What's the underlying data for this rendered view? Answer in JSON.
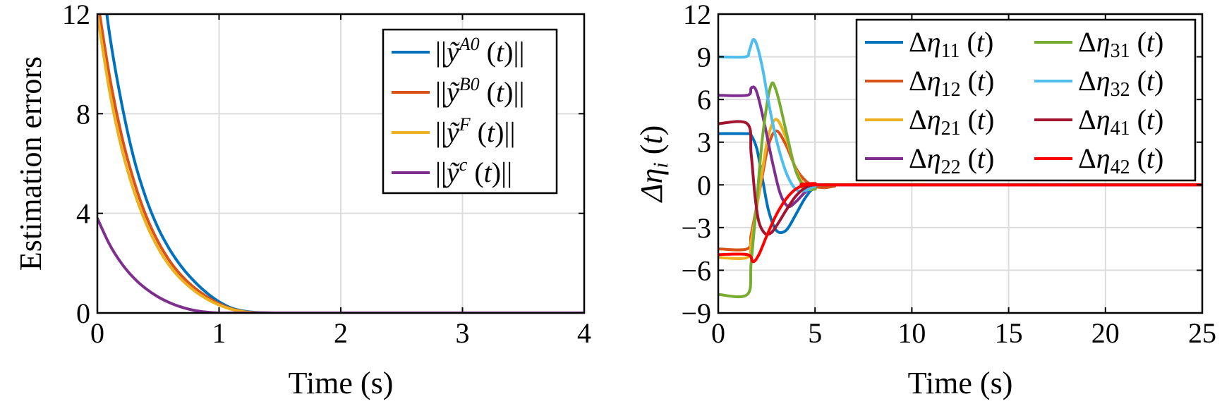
{
  "chart_data": [
    {
      "type": "line",
      "xlabel": "Time (s)",
      "ylabel": "Estimation errors",
      "xlim": [
        0,
        4
      ],
      "ylim": [
        0,
        12
      ],
      "xticks": [
        0,
        1,
        2,
        3,
        4
      ],
      "yticks": [
        0,
        4,
        8,
        12
      ],
      "grid": true,
      "legend": "top-right",
      "series": [
        {
          "name": "||ỹ^A0 (t)||",
          "legend_base": "ỹ",
          "legend_sup": "A0",
          "color": "#0072BD",
          "x": [
            0,
            0.1,
            0.2,
            0.3,
            0.4,
            0.5,
            0.6,
            0.7,
            0.8,
            0.9,
            1.0,
            1.1,
            1.2,
            1.3,
            1.5,
            2,
            3,
            4
          ],
          "y": [
            15.0,
            11.2,
            8.4,
            6.2,
            4.6,
            3.4,
            2.5,
            1.8,
            1.25,
            0.8,
            0.45,
            0.2,
            0.08,
            0.02,
            0,
            0,
            0,
            0
          ]
        },
        {
          "name": "||ỹ^B0 (t)||",
          "legend_base": "ỹ",
          "legend_sup": "B0",
          "color": "#D95319",
          "x": [
            0,
            0.1,
            0.2,
            0.3,
            0.4,
            0.5,
            0.6,
            0.7,
            0.8,
            0.9,
            1.0,
            1.1,
            1.2,
            1.3,
            1.5,
            2,
            3,
            4
          ],
          "y": [
            12.6,
            9.5,
            7.1,
            5.3,
            3.9,
            2.85,
            2.05,
            1.45,
            1.0,
            0.65,
            0.37,
            0.17,
            0.06,
            0.01,
            0,
            0,
            0,
            0
          ]
        },
        {
          "name": "||ỹ^F (t)||",
          "legend_base": "ỹ",
          "legend_sup": "F",
          "color": "#EDB120",
          "x": [
            0,
            0.1,
            0.2,
            0.3,
            0.4,
            0.5,
            0.6,
            0.7,
            0.8,
            0.9,
            1.0,
            1.1,
            1.2,
            1.3,
            1.5,
            2,
            3,
            4
          ],
          "y": [
            12.0,
            8.9,
            6.6,
            4.9,
            3.6,
            2.6,
            1.85,
            1.3,
            0.88,
            0.56,
            0.32,
            0.15,
            0.05,
            0.01,
            0,
            0,
            0,
            0
          ]
        },
        {
          "name": "||ỹ^c (t)||",
          "legend_base": "ỹ",
          "legend_sup": "c",
          "color": "#7E2F8E",
          "x": [
            0,
            0.1,
            0.2,
            0.3,
            0.4,
            0.5,
            0.6,
            0.7,
            0.8,
            0.9,
            1.0,
            1.2,
            1.5,
            2,
            3,
            4
          ],
          "y": [
            3.8,
            2.75,
            1.98,
            1.4,
            0.97,
            0.64,
            0.4,
            0.22,
            0.1,
            0.03,
            0,
            0,
            0,
            0,
            0,
            0
          ]
        }
      ]
    },
    {
      "type": "line",
      "xlabel": "Time (s)",
      "ylabel": "Δη_i (t)",
      "ylabel_base": "Δη",
      "ylabel_sub": "i",
      "ylabel_tail": " (t)",
      "xlim": [
        0,
        25
      ],
      "ylim": [
        -9,
        12
      ],
      "xticks": [
        0,
        5,
        10,
        15,
        20,
        25
      ],
      "yticks": [
        -9,
        -6,
        -3,
        0,
        3,
        6,
        9,
        12
      ],
      "grid": true,
      "legend": "top-right",
      "series": [
        {
          "name": "Δη11 (t)",
          "legend_sub": "11",
          "color": "#0072BD",
          "x": [
            0,
            1.5,
            1.7,
            2.0,
            2.3,
            2.6,
            3.0,
            3.5,
            4.0,
            4.5,
            5.0,
            6.0,
            7.0,
            25
          ],
          "y": [
            3.6,
            3.6,
            3.5,
            2.5,
            0.3,
            -1.8,
            -3.2,
            -3.2,
            -2.1,
            -0.9,
            -0.2,
            0,
            0,
            0
          ]
        },
        {
          "name": "Δη12 (t)",
          "legend_sub": "12",
          "color": "#D95319",
          "x": [
            0,
            1.5,
            1.7,
            2.0,
            2.3,
            2.6,
            3.0,
            3.5,
            4.0,
            4.5,
            5.0,
            5.5,
            6.0,
            7.0,
            25
          ],
          "y": [
            -4.5,
            -4.5,
            -3.5,
            -1.4,
            0.8,
            2.8,
            3.8,
            2.8,
            1.2,
            0.3,
            -0.1,
            -0.2,
            -0.1,
            0,
            0
          ]
        },
        {
          "name": "Δη21 (t)",
          "legend_sub": "21",
          "color": "#EDB120",
          "x": [
            0,
            1.5,
            1.7,
            2.0,
            2.3,
            2.6,
            3.0,
            3.5,
            4.0,
            4.5,
            5.0,
            6.0,
            25
          ],
          "y": [
            -5.1,
            -5.1,
            -4.0,
            -1.5,
            1.2,
            3.5,
            4.6,
            3.3,
            1.1,
            -0.1,
            -0.3,
            0,
            0
          ]
        },
        {
          "name": "Δη22 (t)",
          "legend_sub": "22",
          "color": "#7E2F8E",
          "x": [
            0,
            1.5,
            1.7,
            1.9,
            2.1,
            2.4,
            2.8,
            3.2,
            3.6,
            4.0,
            4.5,
            5.0,
            6.0,
            25
          ],
          "y": [
            6.3,
            6.3,
            6.8,
            6.8,
            6.0,
            4.2,
            1.6,
            -0.6,
            -1.5,
            -1.2,
            -0.5,
            -0.1,
            0,
            0
          ]
        },
        {
          "name": "Δη31 (t)",
          "legend_sub": "31",
          "color": "#77AC30",
          "x": [
            0,
            1.5,
            1.7,
            2.0,
            2.3,
            2.7,
            3.0,
            3.5,
            4.0,
            4.5,
            5.0,
            6.0,
            25
          ],
          "y": [
            -7.7,
            -7.7,
            -5.5,
            -1.0,
            3.5,
            6.9,
            6.6,
            3.8,
            1.0,
            -0.2,
            -0.3,
            0,
            0
          ]
        },
        {
          "name": "Δη32 (t)",
          "legend_sub": "32",
          "color": "#4DBEEE",
          "x": [
            0,
            1.4,
            1.6,
            1.8,
            2.0,
            2.3,
            2.6,
            3.0,
            3.5,
            4.0,
            4.5,
            5.0,
            6.0,
            25
          ],
          "y": [
            9.0,
            9.0,
            9.4,
            10.2,
            9.8,
            8.1,
            5.8,
            3.2,
            0.9,
            -0.3,
            -0.4,
            -0.1,
            0,
            0
          ]
        },
        {
          "name": "Δη41 (t)",
          "legend_sub": "41",
          "color": "#A2142F",
          "x": [
            0,
            1.5,
            1.7,
            1.9,
            2.1,
            2.4,
            2.7,
            3.0,
            3.5,
            4.0,
            4.5,
            5.0,
            6.0,
            25
          ],
          "y": [
            4.3,
            4.3,
            2.2,
            -0.8,
            -2.6,
            -3.4,
            -3.4,
            -2.9,
            -1.8,
            -0.8,
            -0.2,
            0,
            0,
            0
          ]
        },
        {
          "name": "Δη42 (t)",
          "legend_sub": "42",
          "color": "#FF0000",
          "x": [
            0,
            1.5,
            1.8,
            2.1,
            2.5,
            3.0,
            3.5,
            4.0,
            4.5,
            5.0,
            6.0,
            25
          ],
          "y": [
            -4.9,
            -4.9,
            -5.4,
            -4.9,
            -3.6,
            -2.1,
            -1.0,
            -0.3,
            0,
            0.1,
            0,
            0
          ]
        }
      ]
    }
  ]
}
